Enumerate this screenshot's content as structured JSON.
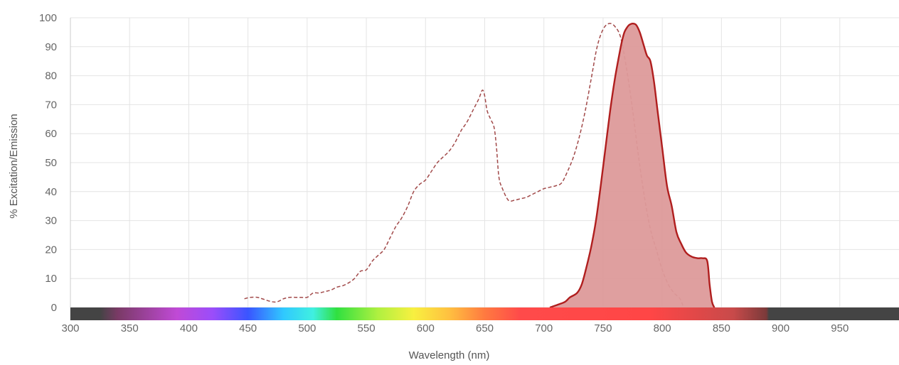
{
  "chart_data": {
    "type": "area",
    "title": "",
    "xlabel": "Wavelength (nm)",
    "ylabel": "% Excitation/Emission",
    "xlim": [
      300,
      1000
    ],
    "ylim": [
      0,
      100
    ],
    "x_ticks": [
      "300",
      "350",
      "400",
      "450",
      "500",
      "550",
      "600",
      "650",
      "700",
      "750",
      "800",
      "850",
      "900",
      "950"
    ],
    "y_ticks": [
      "0",
      "10",
      "20",
      "30",
      "40",
      "50",
      "60",
      "70",
      "80",
      "90",
      "100"
    ],
    "grid": true,
    "legend": "none",
    "spectrum_bar": {
      "range": [
        300,
        1000
      ],
      "stops": [
        {
          "wl": 300,
          "color": "#444444"
        },
        {
          "wl": 325,
          "color": "#444444"
        },
        {
          "wl": 340,
          "color": "#7a3a66"
        },
        {
          "wl": 390,
          "color": "#c04ad6"
        },
        {
          "wl": 420,
          "color": "#9b4dfa"
        },
        {
          "wl": 450,
          "color": "#3a55ff"
        },
        {
          "wl": 480,
          "color": "#30c8ff"
        },
        {
          "wl": 505,
          "color": "#40f0e0"
        },
        {
          "wl": 525,
          "color": "#30e040"
        },
        {
          "wl": 560,
          "color": "#b0f040"
        },
        {
          "wl": 590,
          "color": "#f8f040"
        },
        {
          "wl": 620,
          "color": "#ffc040"
        },
        {
          "wl": 650,
          "color": "#ff7a40"
        },
        {
          "wl": 680,
          "color": "#ff4a4a"
        },
        {
          "wl": 790,
          "color": "#ff4646"
        },
        {
          "wl": 860,
          "color": "#c84a4a"
        },
        {
          "wl": 888,
          "color": "#7a3a3a"
        },
        {
          "wl": 890,
          "color": "#444444"
        },
        {
          "wl": 1000,
          "color": "#444444"
        }
      ]
    },
    "series": [
      {
        "style": "dashed-line",
        "color": "#a24a4a",
        "x": [
          447,
          452,
          458,
          462,
          470,
          475,
          480,
          485,
          490,
          495,
          500,
          505,
          510,
          515,
          520,
          525,
          530,
          535,
          540,
          545,
          550,
          555,
          560,
          565,
          570,
          575,
          580,
          585,
          590,
          595,
          600,
          605,
          610,
          615,
          620,
          625,
          630,
          635,
          640,
          645,
          648,
          650,
          652,
          655,
          658,
          660,
          662,
          665,
          670,
          675,
          680,
          685,
          690,
          695,
          700,
          705,
          710,
          715,
          720,
          725,
          730,
          735,
          740,
          745,
          750,
          755,
          760,
          765,
          770,
          775,
          780,
          785,
          790,
          795,
          800,
          805,
          810,
          815,
          818
        ],
        "y": [
          3,
          3.5,
          3.5,
          3,
          2,
          2,
          3,
          3.5,
          3.5,
          3.5,
          3.5,
          5,
          5,
          5.5,
          6,
          7,
          7.5,
          8.5,
          10,
          12.5,
          13,
          16,
          18,
          20,
          24,
          28,
          31,
          35,
          40,
          42.5,
          44,
          47,
          50,
          52,
          54,
          57,
          61,
          64,
          68,
          72,
          75,
          73,
          68,
          65,
          62,
          55,
          45,
          41,
          37,
          37,
          37.5,
          38,
          39,
          40,
          41,
          41.5,
          42,
          43,
          47,
          52,
          59,
          68,
          79,
          90,
          96,
          98,
          97,
          93,
          82,
          68,
          52,
          38,
          27,
          20,
          13,
          8,
          5,
          3,
          0
        ]
      },
      {
        "style": "filled-area",
        "color": "#b01e1e",
        "fill": "#dd9a9a",
        "x": [
          705,
          712,
          718,
          722,
          728,
          732,
          736,
          740,
          744,
          748,
          752,
          756,
          760,
          764,
          766,
          768,
          770,
          772,
          775,
          778,
          781,
          784,
          787,
          790,
          793,
          796,
          800,
          804,
          808,
          812,
          816,
          820,
          825,
          830,
          834,
          838,
          840,
          842,
          844
        ],
        "y": [
          0,
          1,
          2,
          3.5,
          5,
          8,
          14,
          21,
          30,
          42,
          55,
          68,
          79,
          88,
          92,
          95,
          96.5,
          97.5,
          98,
          97.5,
          95,
          91,
          87,
          85,
          78,
          68,
          55,
          42,
          35,
          26,
          22,
          19,
          17.5,
          17,
          17,
          16,
          8,
          2,
          0
        ]
      }
    ]
  }
}
